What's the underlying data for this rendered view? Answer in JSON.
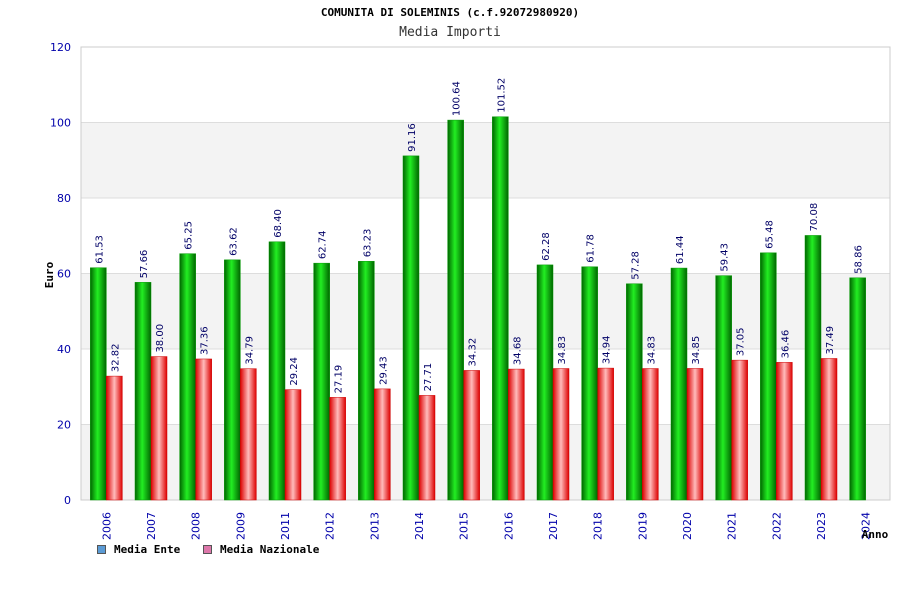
{
  "header": {
    "title": "COMUNITA DI SOLEMINIS (c.f.92072980920)",
    "subtitle": "Media Importi"
  },
  "chart_data": {
    "type": "bar",
    "title": "COMUNITA DI SOLEMINIS (c.f.92072980920)",
    "subtitle": "Media Importi",
    "xlabel": "Anno",
    "ylabel": "Euro",
    "ylim": [
      0,
      120
    ],
    "yticks": [
      0,
      20,
      40,
      60,
      80,
      100,
      120
    ],
    "grid": "horizontal bands",
    "legend_position": "bottom-left",
    "categories": [
      "2006",
      "2007",
      "2008",
      "2009",
      "2011",
      "2012",
      "2013",
      "2014",
      "2015",
      "2016",
      "2017",
      "2018",
      "2019",
      "2020",
      "2021",
      "2022",
      "2023",
      "2024"
    ],
    "series": [
      {
        "name": "Media Ente",
        "color": "#00cc00",
        "values": [
          61.53,
          57.66,
          65.25,
          63.62,
          68.4,
          62.74,
          63.23,
          91.16,
          100.64,
          101.52,
          62.28,
          61.78,
          57.28,
          61.44,
          59.43,
          65.48,
          70.08,
          58.86
        ],
        "labels": [
          "61.53",
          "57.66",
          "65.25",
          "63.62",
          "68.40",
          "62.74",
          "63.23",
          "91.16",
          "100.64",
          "101.52",
          "62.28",
          "61.78",
          "57.28",
          "61.44",
          "59.43",
          "65.48",
          "70.08",
          "58.86"
        ]
      },
      {
        "name": "Media Nazionale",
        "color": "#ee1111",
        "values": [
          32.82,
          38.0,
          37.36,
          34.79,
          29.24,
          27.19,
          29.43,
          27.71,
          34.32,
          34.68,
          34.83,
          34.94,
          34.83,
          34.85,
          37.05,
          36.46,
          37.49,
          null
        ],
        "labels": [
          "32.82",
          "38.00",
          "37.36",
          "34.79",
          "29.24",
          "27.19",
          "29.43",
          "27.71",
          "34.32",
          "34.68",
          "34.83",
          "34.94",
          "34.83",
          "34.85",
          "37.05",
          "36.46",
          "37.49",
          null
        ]
      }
    ]
  },
  "legend": {
    "items": [
      {
        "label": "Media Ente",
        "color": "#5b9bd5"
      },
      {
        "label": "Media Nazionale",
        "color": "#dd77aa"
      }
    ]
  }
}
